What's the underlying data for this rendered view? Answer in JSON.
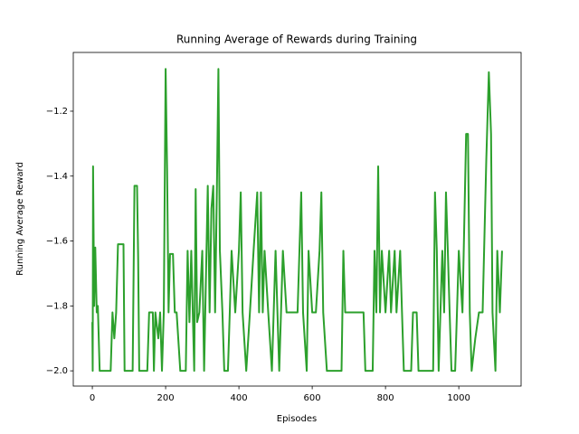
{
  "chart_data": {
    "type": "line",
    "title": "Running Average of Rewards during Training",
    "x_label": "Episodes",
    "y_label": "Running Average Reward",
    "xlim": [
      -52,
      1170
    ],
    "ylim": [
      -2.047,
      -1.019
    ],
    "xticks": [
      0,
      200,
      400,
      600,
      800,
      1000
    ],
    "yticks": [
      {
        "value": -2.0,
        "label": "−2.0"
      },
      {
        "value": -1.8,
        "label": "−1.8"
      },
      {
        "value": -1.6,
        "label": "−1.6"
      },
      {
        "value": -1.4,
        "label": "−1.4"
      },
      {
        "value": -1.2,
        "label": "−1.2"
      }
    ],
    "grid": false,
    "x": [
      0,
      1,
      2,
      5,
      8,
      12,
      15,
      20,
      50,
      55,
      60,
      65,
      70,
      85,
      88,
      110,
      115,
      122,
      125,
      128,
      150,
      155,
      165,
      168,
      172,
      180,
      185,
      190,
      195,
      200,
      204,
      208,
      212,
      220,
      225,
      230,
      240,
      255,
      260,
      265,
      270,
      278,
      282,
      286,
      292,
      300,
      305,
      315,
      320,
      325,
      330,
      335,
      340,
      344,
      348,
      355,
      360,
      370,
      375,
      380,
      390,
      400,
      405,
      410,
      420,
      430,
      440,
      450,
      455,
      460,
      465,
      470,
      480,
      490,
      500,
      510,
      520,
      530,
      540,
      550,
      560,
      570,
      575,
      585,
      590,
      600,
      610,
      620,
      625,
      630,
      640,
      650,
      680,
      685,
      690,
      700,
      730,
      740,
      745,
      765,
      770,
      775,
      780,
      785,
      790,
      800,
      810,
      815,
      825,
      830,
      840,
      845,
      850,
      870,
      875,
      885,
      890,
      930,
      935,
      940,
      945,
      955,
      960,
      965,
      970,
      975,
      980,
      990,
      995,
      1000,
      1010,
      1020,
      1025,
      1030,
      1035,
      1045,
      1055,
      1065,
      1075,
      1082,
      1088,
      1092,
      1100,
      1105,
      1112,
      1118
    ],
    "series": [
      {
        "name": "Running Average",
        "color": "#2ca02c",
        "values": [
          -1.85,
          -2.0,
          -1.37,
          -1.8,
          -1.62,
          -1.82,
          -1.8,
          -2.0,
          -2.0,
          -1.82,
          -1.9,
          -1.82,
          -1.61,
          -1.61,
          -2.0,
          -2.0,
          -1.43,
          -1.43,
          -1.65,
          -2.0,
          -2.0,
          -1.82,
          -1.82,
          -2.0,
          -1.82,
          -1.9,
          -1.82,
          -2.0,
          -1.82,
          -1.07,
          -1.38,
          -1.82,
          -1.64,
          -1.64,
          -1.82,
          -1.82,
          -2.0,
          -2.0,
          -1.63,
          -1.85,
          -1.63,
          -2.0,
          -1.44,
          -1.85,
          -1.82,
          -1.63,
          -2.0,
          -1.43,
          -1.82,
          -1.5,
          -1.43,
          -1.82,
          -1.43,
          -1.07,
          -1.63,
          -1.82,
          -2.0,
          -2.0,
          -1.82,
          -1.63,
          -1.82,
          -1.63,
          -1.45,
          -1.82,
          -2.0,
          -1.82,
          -1.63,
          -1.45,
          -1.82,
          -1.45,
          -1.82,
          -1.63,
          -1.82,
          -2.0,
          -1.63,
          -2.0,
          -1.63,
          -1.82,
          -1.82,
          -1.82,
          -1.82,
          -1.45,
          -1.82,
          -2.0,
          -1.63,
          -1.82,
          -1.82,
          -1.63,
          -1.45,
          -1.82,
          -2.0,
          -2.0,
          -2.0,
          -1.63,
          -1.82,
          -1.82,
          -1.82,
          -1.82,
          -2.0,
          -2.0,
          -1.63,
          -1.82,
          -1.37,
          -1.82,
          -1.63,
          -1.82,
          -1.63,
          -1.82,
          -1.63,
          -1.82,
          -1.63,
          -1.82,
          -2.0,
          -2.0,
          -1.82,
          -1.82,
          -2.0,
          -2.0,
          -1.45,
          -1.63,
          -2.0,
          -1.63,
          -1.82,
          -1.45,
          -1.63,
          -1.82,
          -2.0,
          -2.0,
          -1.82,
          -1.63,
          -1.82,
          -1.27,
          -1.27,
          -1.82,
          -2.0,
          -1.9,
          -1.82,
          -1.82,
          -1.35,
          -1.08,
          -1.27,
          -1.82,
          -2.0,
          -1.63,
          -1.82,
          -1.63
        ]
      }
    ]
  }
}
